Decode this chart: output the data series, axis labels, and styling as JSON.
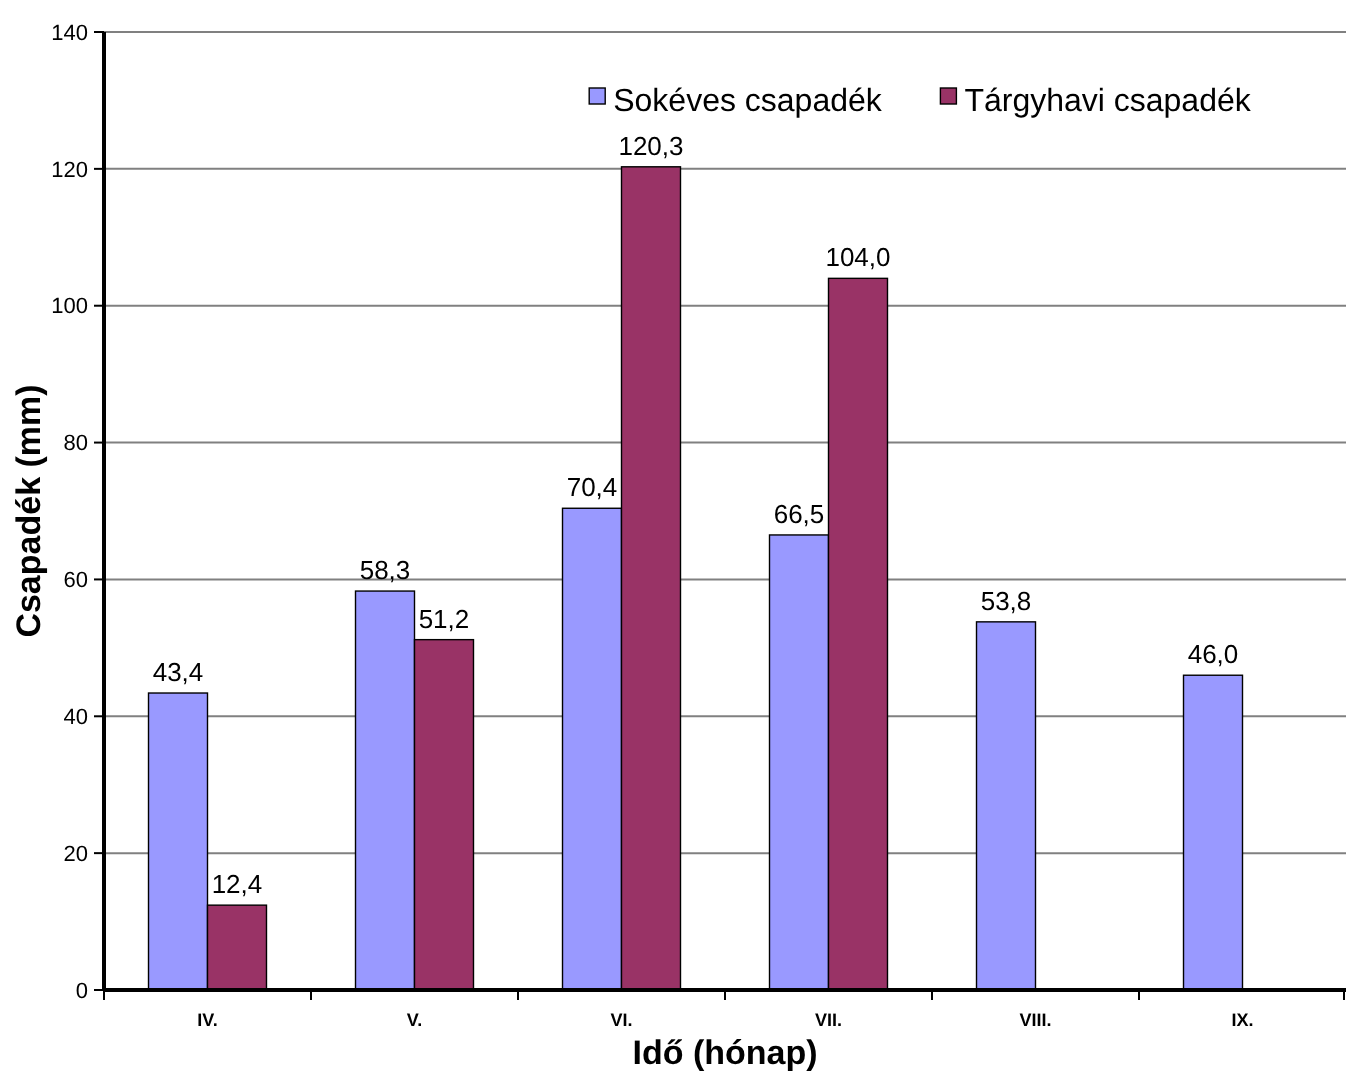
{
  "chart_data": {
    "type": "bar",
    "xlabel": "Idő (hónap)",
    "ylabel": "Csapadék (mm)",
    "categories": [
      "IV.",
      "V.",
      "VI.",
      "VII.",
      "VIII.",
      "IX."
    ],
    "series": [
      {
        "name": "Sokéves csapadék",
        "color": "#9999ff",
        "values": [
          43.4,
          58.3,
          70.4,
          66.5,
          53.8,
          46.0
        ],
        "value_labels": [
          "43,4",
          "58,3",
          "70,4",
          "66,5",
          "53,8",
          "46,0"
        ]
      },
      {
        "name": "Tárgyhavi csapadék",
        "color": "#993366",
        "values": [
          12.4,
          51.2,
          120.3,
          104.0,
          null,
          null
        ],
        "value_labels": [
          "12,4",
          "51,2",
          "120,3",
          "104,0",
          null,
          null
        ]
      }
    ],
    "ylim": [
      0,
      140
    ],
    "yticks": [
      0,
      20,
      40,
      60,
      80,
      100,
      120,
      140
    ],
    "grid": "y",
    "legend": "top right"
  }
}
